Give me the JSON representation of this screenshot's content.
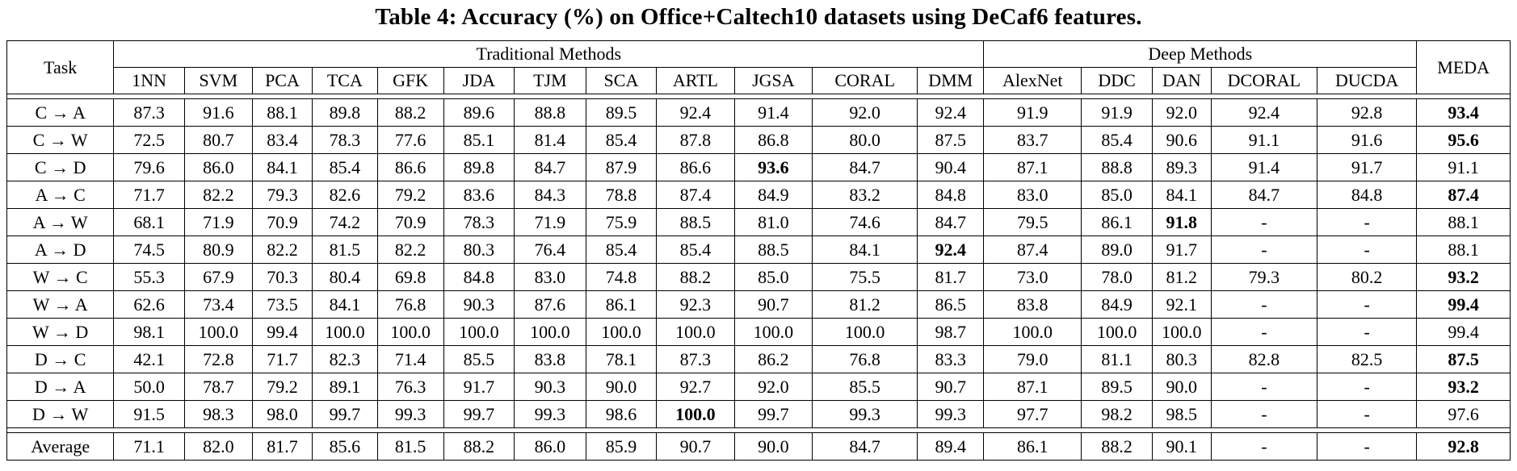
{
  "caption": "Table 4: Accuracy (%) on Office+Caltech10 datasets using DeCaf6 features.",
  "header": {
    "task": "Task",
    "group_traditional": "Traditional Methods",
    "group_deep": "Deep Methods",
    "meda": "MEDA",
    "methods": [
      "1NN",
      "SVM",
      "PCA",
      "TCA",
      "GFK",
      "JDA",
      "TJM",
      "SCA",
      "ARTL",
      "JGSA",
      "CORAL",
      "DMM",
      "AlexNet",
      "DDC",
      "DAN",
      "DCORAL",
      "DUCDA"
    ]
  },
  "rows": [
    {
      "task": "C → A",
      "values": [
        "87.3",
        "91.6",
        "88.1",
        "89.8",
        "88.2",
        "89.6",
        "88.8",
        "89.5",
        "92.4",
        "91.4",
        "92.0",
        "92.4",
        "91.9",
        "91.9",
        "92.0",
        "92.4",
        "92.8",
        "93.4"
      ],
      "bold": [
        17
      ]
    },
    {
      "task": "C → W",
      "values": [
        "72.5",
        "80.7",
        "83.4",
        "78.3",
        "77.6",
        "85.1",
        "81.4",
        "85.4",
        "87.8",
        "86.8",
        "80.0",
        "87.5",
        "83.7",
        "85.4",
        "90.6",
        "91.1",
        "91.6",
        "95.6"
      ],
      "bold": [
        17
      ]
    },
    {
      "task": "C → D",
      "values": [
        "79.6",
        "86.0",
        "84.1",
        "85.4",
        "86.6",
        "89.8",
        "84.7",
        "87.9",
        "86.6",
        "93.6",
        "84.7",
        "90.4",
        "87.1",
        "88.8",
        "89.3",
        "91.4",
        "91.7",
        "91.1"
      ],
      "bold": [
        9
      ]
    },
    {
      "task": "A → C",
      "values": [
        "71.7",
        "82.2",
        "79.3",
        "82.6",
        "79.2",
        "83.6",
        "84.3",
        "78.8",
        "87.4",
        "84.9",
        "83.2",
        "84.8",
        "83.0",
        "85.0",
        "84.1",
        "84.7",
        "84.8",
        "87.4"
      ],
      "bold": [
        17
      ]
    },
    {
      "task": "A → W",
      "values": [
        "68.1",
        "71.9",
        "70.9",
        "74.2",
        "70.9",
        "78.3",
        "71.9",
        "75.9",
        "88.5",
        "81.0",
        "74.6",
        "84.7",
        "79.5",
        "86.1",
        "91.8",
        "-",
        "-",
        "88.1"
      ],
      "bold": [
        14
      ]
    },
    {
      "task": "A → D",
      "values": [
        "74.5",
        "80.9",
        "82.2",
        "81.5",
        "82.2",
        "80.3",
        "76.4",
        "85.4",
        "85.4",
        "88.5",
        "84.1",
        "92.4",
        "87.4",
        "89.0",
        "91.7",
        "-",
        "-",
        "88.1"
      ],
      "bold": [
        11
      ]
    },
    {
      "task": "W → C",
      "values": [
        "55.3",
        "67.9",
        "70.3",
        "80.4",
        "69.8",
        "84.8",
        "83.0",
        "74.8",
        "88.2",
        "85.0",
        "75.5",
        "81.7",
        "73.0",
        "78.0",
        "81.2",
        "79.3",
        "80.2",
        "93.2"
      ],
      "bold": [
        17
      ]
    },
    {
      "task": "W → A",
      "values": [
        "62.6",
        "73.4",
        "73.5",
        "84.1",
        "76.8",
        "90.3",
        "87.6",
        "86.1",
        "92.3",
        "90.7",
        "81.2",
        "86.5",
        "83.8",
        "84.9",
        "92.1",
        "-",
        "-",
        "99.4"
      ],
      "bold": [
        17
      ]
    },
    {
      "task": "W → D",
      "values": [
        "98.1",
        "100.0",
        "99.4",
        "100.0",
        "100.0",
        "100.0",
        "100.0",
        "100.0",
        "100.0",
        "100.0",
        "100.0",
        "98.7",
        "100.0",
        "100.0",
        "100.0",
        "-",
        "-",
        "99.4"
      ],
      "bold": []
    },
    {
      "task": "D → C",
      "values": [
        "42.1",
        "72.8",
        "71.7",
        "82.3",
        "71.4",
        "85.5",
        "83.8",
        "78.1",
        "87.3",
        "86.2",
        "76.8",
        "83.3",
        "79.0",
        "81.1",
        "80.3",
        "82.8",
        "82.5",
        "87.5"
      ],
      "bold": [
        17
      ]
    },
    {
      "task": "D → A",
      "values": [
        "50.0",
        "78.7",
        "79.2",
        "89.1",
        "76.3",
        "91.7",
        "90.3",
        "90.0",
        "92.7",
        "92.0",
        "85.5",
        "90.7",
        "87.1",
        "89.5",
        "90.0",
        "-",
        "-",
        "93.2"
      ],
      "bold": [
        17
      ]
    },
    {
      "task": "D → W",
      "values": [
        "91.5",
        "98.3",
        "98.0",
        "99.7",
        "99.3",
        "99.7",
        "99.3",
        "98.6",
        "100.0",
        "99.7",
        "99.3",
        "99.3",
        "97.7",
        "98.2",
        "98.5",
        "-",
        "-",
        "97.6"
      ],
      "bold": [
        8
      ]
    }
  ],
  "average": {
    "task": "Average",
    "values": [
      "71.1",
      "82.0",
      "81.7",
      "85.6",
      "81.5",
      "88.2",
      "86.0",
      "85.9",
      "90.7",
      "90.0",
      "84.7",
      "89.4",
      "86.1",
      "88.2",
      "90.1",
      "-",
      "-",
      "92.8"
    ],
    "bold": [
      17
    ]
  }
}
